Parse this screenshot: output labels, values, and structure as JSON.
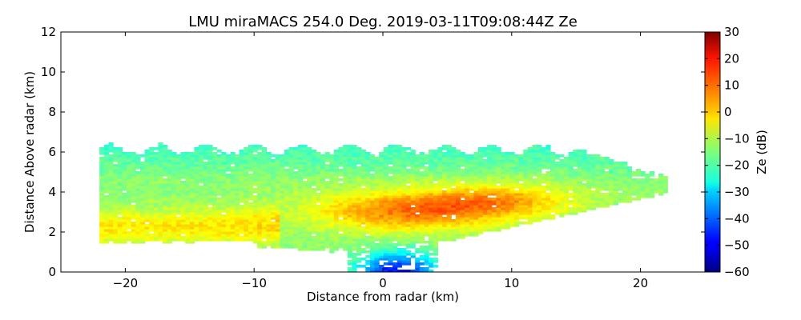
{
  "chart_data": {
    "type": "heatmap",
    "title": "LMU miraMACS 254.0 Deg. 2019-03-11T09:08:44Z  Ze",
    "xlabel": "Distance from radar (km)",
    "ylabel": "Distance Above radar  (km)",
    "xlim": [
      -25,
      25
    ],
    "ylim": [
      0,
      12
    ],
    "x_ticks": [
      -20,
      -10,
      0,
      10,
      20
    ],
    "x_tick_labels": [
      "−20",
      "−10",
      "0",
      "10",
      "20"
    ],
    "y_ticks": [
      0,
      2,
      4,
      6,
      8,
      10,
      12
    ],
    "y_tick_labels": [
      "0",
      "2",
      "4",
      "6",
      "8",
      "10",
      "12"
    ],
    "colorbar": {
      "label": "Ze (dB)",
      "range": [
        -60,
        30
      ],
      "colormap": "jet",
      "ticks": [
        30,
        20,
        10,
        0,
        -10,
        -20,
        -30,
        -40,
        -50,
        -60
      ],
      "tick_labels": [
        "30",
        "20",
        "10",
        "0",
        "−10",
        "−20",
        "−30",
        "−40",
        "−50",
        "−60"
      ]
    },
    "field": {
      "description_level": "approximate",
      "echo_top_km": 6.0,
      "left_edge_x_km": -22,
      "right_edge_x_km": 22,
      "right_edge_top_km": 4.0,
      "regions": [
        {
          "name": "upper cloud",
          "x_km": [
            -22,
            22
          ],
          "height_km": [
            4.5,
            6.2
          ],
          "ze_db": -18
        },
        {
          "name": "core",
          "x_km": [
            -5,
            10
          ],
          "height_km": [
            2.0,
            4.0
          ],
          "ze_db": 5
        },
        {
          "name": "low layer",
          "x_km": [
            -22,
            -10
          ],
          "height_km": [
            1.4,
            3.0
          ],
          "ze_db": -2
        },
        {
          "name": "weak near-ground echo",
          "x_km": [
            -2,
            5
          ],
          "height_km": [
            0,
            1.6
          ],
          "ze_db": -42
        }
      ]
    }
  }
}
